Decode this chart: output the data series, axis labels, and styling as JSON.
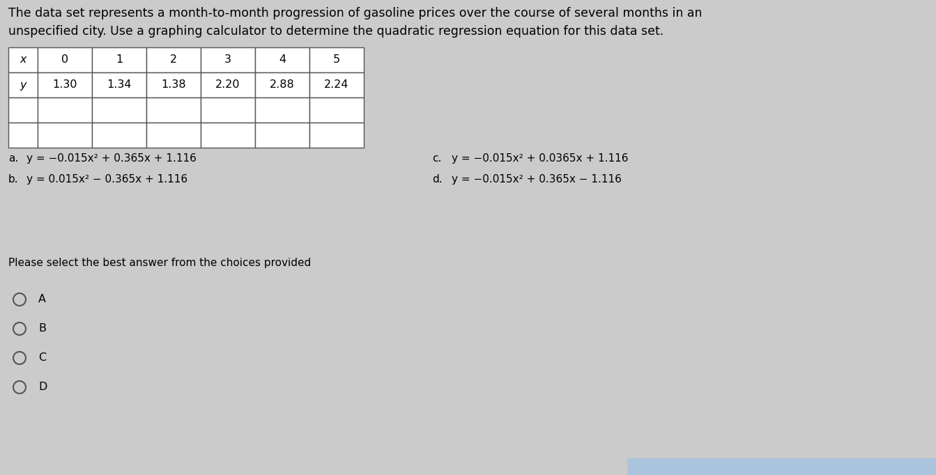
{
  "bg_color": "#cbcbcb",
  "title_text_line1": "The data set represents a month-to-month progression of gasoline prices over the course of several months in an",
  "title_text_line2": "unspecified city. Use a graphing calculator to determine the quadratic regression equation for this data set.",
  "table_x_header": "x",
  "table_y_header": "y",
  "table_x_values": [
    "0",
    "1",
    "2",
    "3",
    "4",
    "5"
  ],
  "table_y_values": [
    "1.30",
    "1.34",
    "1.38",
    "2.20",
    "2.88",
    "2.24"
  ],
  "choice_a_label": "a.",
  "choice_a": "y = −0.015x² + 0.365x + 1.116",
  "choice_b_label": "b.",
  "choice_b": "y = 0.015x² − 0.365x + 1.116",
  "choice_c_label": "c.",
  "choice_c": "y = −0.015x² + 0.0365x + 1.116",
  "choice_d_label": "d.",
  "choice_d": "y = −0.015x² + 0.365x − 1.116",
  "please_select": "Please select the best answer from the choices provided",
  "radio_labels": [
    "A",
    "B",
    "C",
    "D"
  ],
  "font_size_title": 12.5,
  "font_size_table": 11.5,
  "font_size_choices": 11.0,
  "font_size_radio": 11.5
}
